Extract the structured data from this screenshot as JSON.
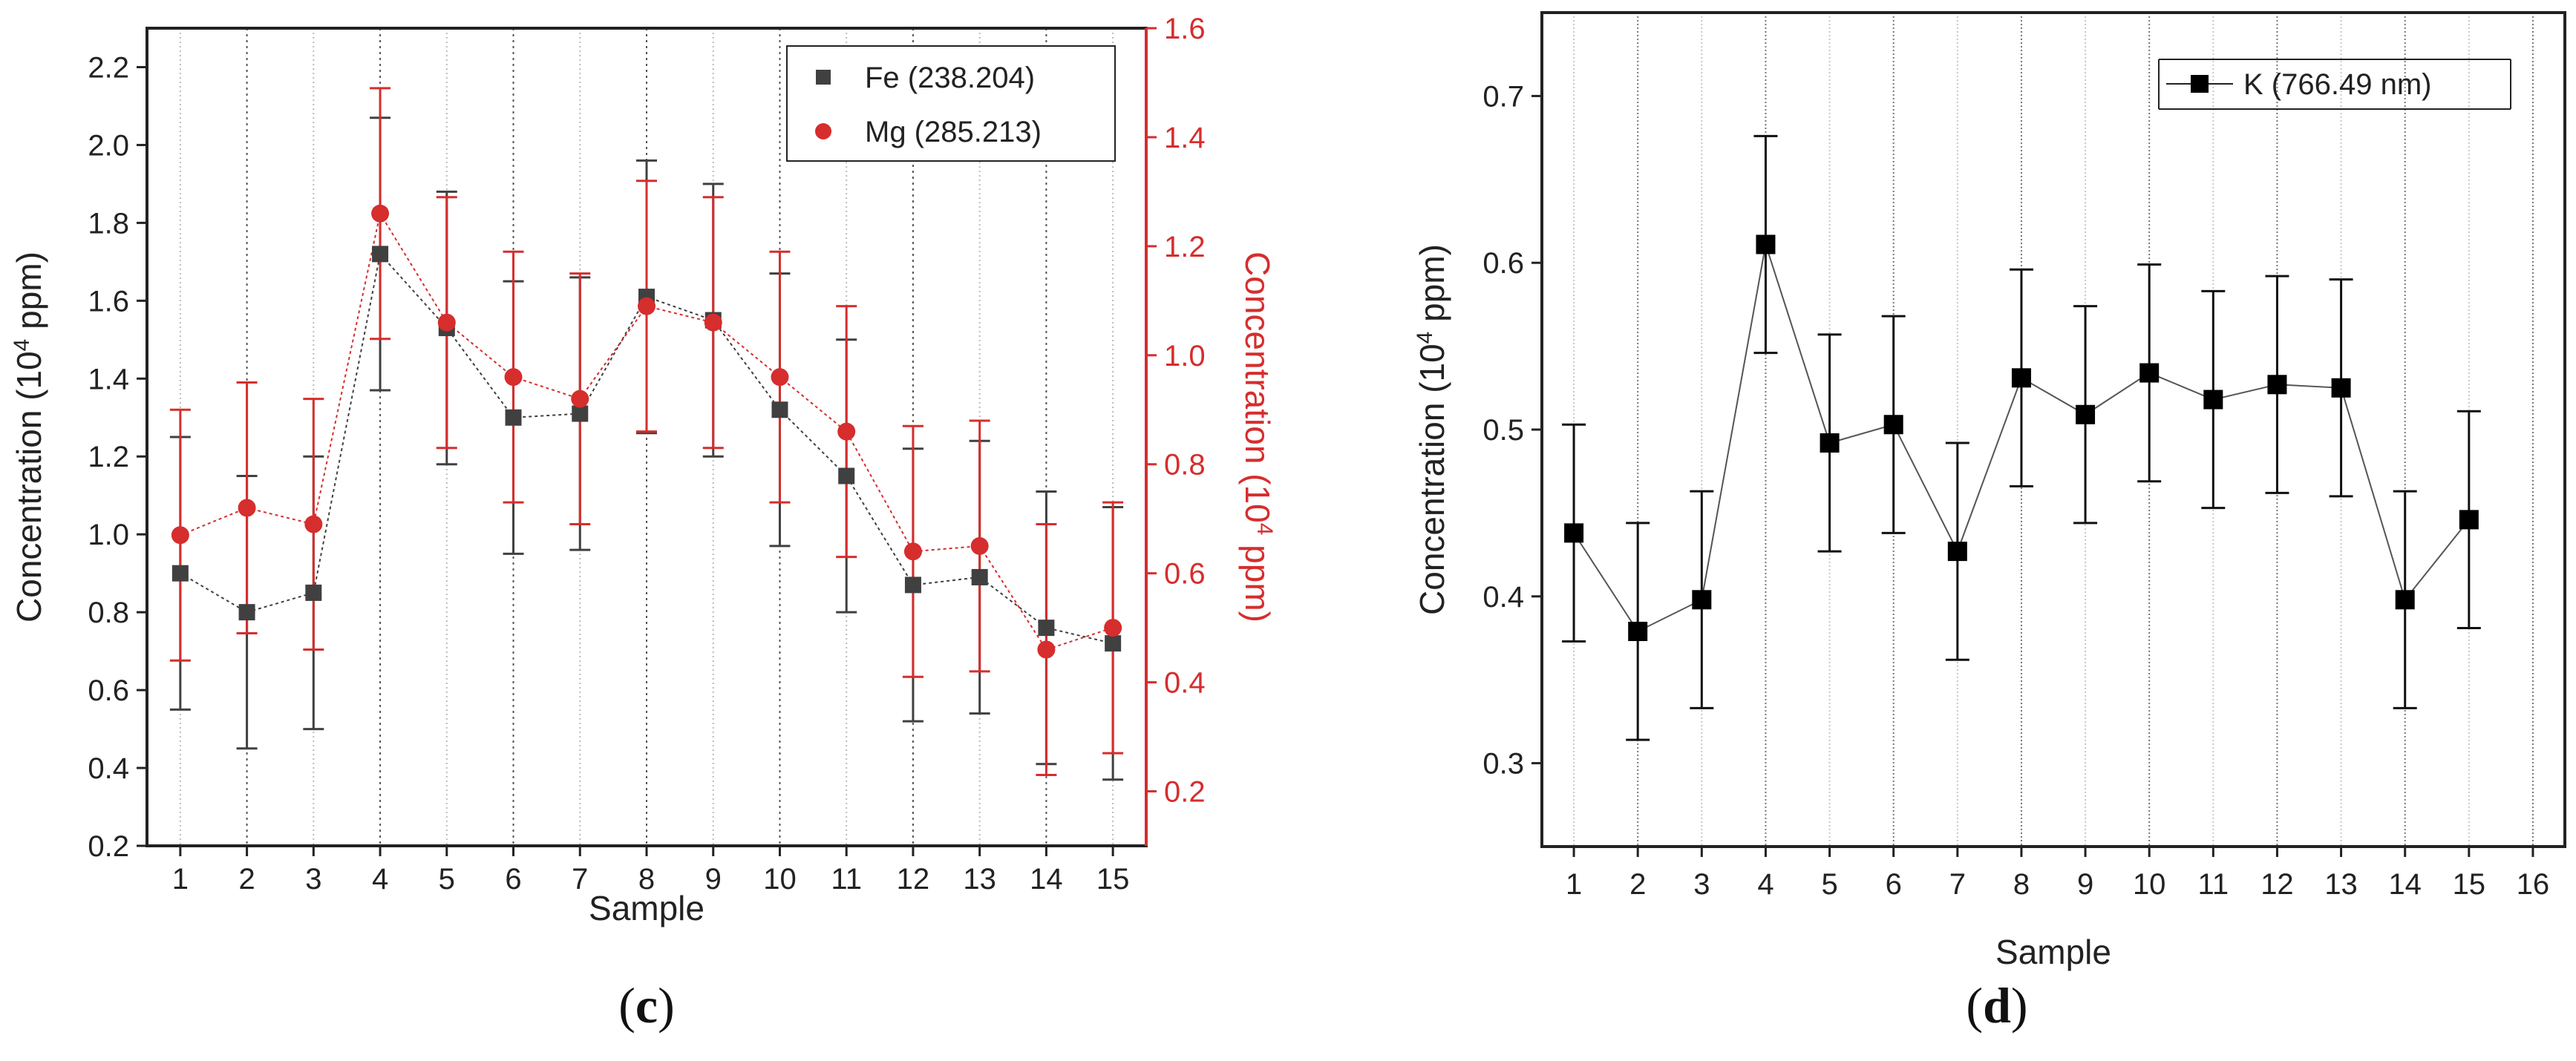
{
  "chart_data": [
    {
      "type": "line",
      "panel_label": "c",
      "xlabel": "Sample",
      "ylabel_left": "Concentration (10^4 ppm)",
      "ylabel_right": "Concentration (10^4 ppm)",
      "x": [
        1,
        2,
        3,
        4,
        5,
        6,
        7,
        8,
        9,
        10,
        11,
        12,
        13,
        14,
        15
      ],
      "xlim": [
        0.5,
        15.5
      ],
      "ylim_left": [
        0.2,
        2.3
      ],
      "ylim_right": [
        0.1,
        1.6
      ],
      "yticks_left": [
        0.2,
        0.4,
        0.6,
        0.8,
        1.0,
        1.2,
        1.4,
        1.6,
        1.8,
        2.0,
        2.2
      ],
      "yticks_right": [
        0.2,
        0.4,
        0.6,
        0.8,
        1.0,
        1.2,
        1.4,
        1.6
      ],
      "colors": {
        "fe": "#404040",
        "mg": "#d62d2d"
      },
      "legend_position": "top-right",
      "series": [
        {
          "name": "Fe (238.204)",
          "axis": "left",
          "marker": "square",
          "values": [
            0.9,
            0.8,
            0.85,
            1.72,
            1.53,
            1.3,
            1.31,
            1.61,
            1.55,
            1.32,
            1.15,
            0.87,
            0.89,
            0.76,
            0.72
          ],
          "errors": [
            0.35,
            0.35,
            0.35,
            0.35,
            0.35,
            0.35,
            0.35,
            0.35,
            0.35,
            0.35,
            0.35,
            0.35,
            0.35,
            0.35,
            0.35
          ]
        },
        {
          "name": "Mg (285.213)",
          "axis": "right",
          "marker": "circle",
          "values": [
            0.67,
            0.72,
            0.69,
            1.26,
            1.06,
            0.96,
            0.92,
            1.09,
            1.06,
            0.96,
            0.86,
            0.64,
            0.65,
            0.46,
            0.5
          ],
          "errors": [
            0.23,
            0.23,
            0.23,
            0.23,
            0.23,
            0.23,
            0.23,
            0.23,
            0.23,
            0.23,
            0.23,
            0.23,
            0.23,
            0.23,
            0.23
          ]
        }
      ]
    },
    {
      "type": "line",
      "panel_label": "d",
      "xlabel": "Sample",
      "ylabel": "Concentration (10^4 ppm)",
      "x": [
        1,
        2,
        3,
        4,
        5,
        6,
        7,
        8,
        9,
        10,
        11,
        12,
        13,
        14,
        15
      ],
      "xticks": [
        1,
        2,
        3,
        4,
        5,
        6,
        7,
        8,
        9,
        10,
        11,
        12,
        13,
        14,
        15,
        16
      ],
      "xlim": [
        0.5,
        16.5
      ],
      "ylim": [
        0.25,
        0.75
      ],
      "yticks": [
        0.3,
        0.4,
        0.5,
        0.6,
        0.7
      ],
      "colors": {
        "k": "#000000"
      },
      "legend_position": "top-right",
      "series": [
        {
          "name": "K (766.49 nm)",
          "marker": "square",
          "values": [
            0.438,
            0.379,
            0.398,
            0.611,
            0.492,
            0.503,
            0.427,
            0.531,
            0.509,
            0.534,
            0.518,
            0.527,
            0.525,
            0.398,
            0.446
          ],
          "errors": [
            0.065,
            0.065,
            0.065,
            0.065,
            0.065,
            0.065,
            0.065,
            0.065,
            0.065,
            0.065,
            0.065,
            0.065,
            0.065,
            0.065,
            0.065
          ]
        }
      ]
    }
  ]
}
